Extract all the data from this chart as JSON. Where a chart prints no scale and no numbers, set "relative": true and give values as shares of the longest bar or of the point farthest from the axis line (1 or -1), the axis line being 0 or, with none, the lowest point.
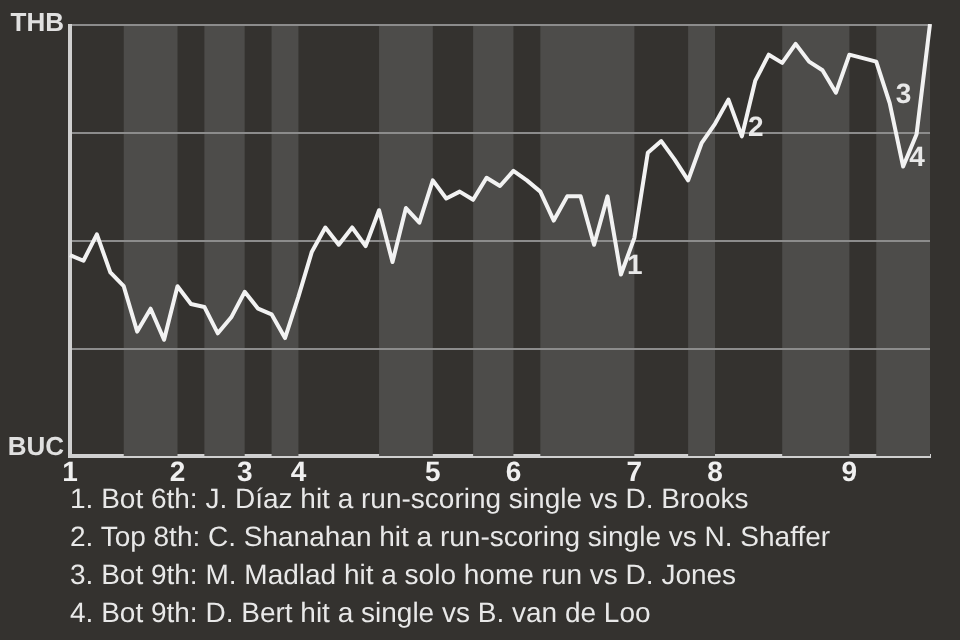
{
  "chart_data": {
    "type": "line",
    "color": "#f2f2f2",
    "marker": "none",
    "line_style": "solid",
    "grid": "y",
    "legend": false,
    "relative": true,
    "categories": [
      "1",
      null,
      null,
      null,
      null,
      null,
      null,
      null,
      "2",
      null,
      null,
      null,
      null,
      "3",
      null,
      null,
      null,
      "4",
      null,
      null,
      null,
      null,
      null,
      null,
      null,
      null,
      null,
      "5",
      null,
      null,
      null,
      null,
      null,
      "6",
      null,
      null,
      null,
      null,
      null,
      null,
      null,
      null,
      "7",
      null,
      null,
      null,
      null,
      null,
      "8",
      null,
      null,
      null,
      null,
      null,
      null,
      null,
      null,
      null,
      "9",
      null,
      null,
      null,
      null,
      null,
      null
    ],
    "values": [
      0.465,
      0.452,
      0.513,
      0.425,
      0.393,
      0.288,
      0.341,
      0.269,
      0.393,
      0.352,
      0.345,
      0.284,
      0.321,
      0.38,
      0.341,
      0.328,
      0.273,
      0.369,
      0.473,
      0.529,
      0.489,
      0.529,
      0.486,
      0.569,
      0.449,
      0.574,
      0.54,
      0.638,
      0.596,
      0.612,
      0.593,
      0.644,
      0.625,
      0.66,
      0.638,
      0.612,
      0.545,
      0.601,
      0.601,
      0.489,
      0.601,
      0.42,
      0.505,
      0.702,
      0.729,
      0.686,
      0.638,
      0.724,
      0.769,
      0.825,
      0.74,
      0.869,
      0.929,
      0.91,
      0.954,
      0.913,
      0.893,
      0.841,
      0.929,
      0.921,
      0.913,
      0.817,
      0.67,
      0.745,
      1
    ],
    "annotations": [
      "THB",
      "BUC",
      "1",
      "2",
      "3",
      "4",
      "1. Bot 6th: J. Díaz hit a run-scoring single vs D. Brooks",
      "2. Top 8th: C. Shanahan hit a run-scoring single vs N. Shaffer",
      "3. Bot 9th: M. Madlad hit a solo home run vs D. Jones",
      "4. Bot 9th: D. Bert hit a single vs B. van de Loo"
    ]
  }
}
